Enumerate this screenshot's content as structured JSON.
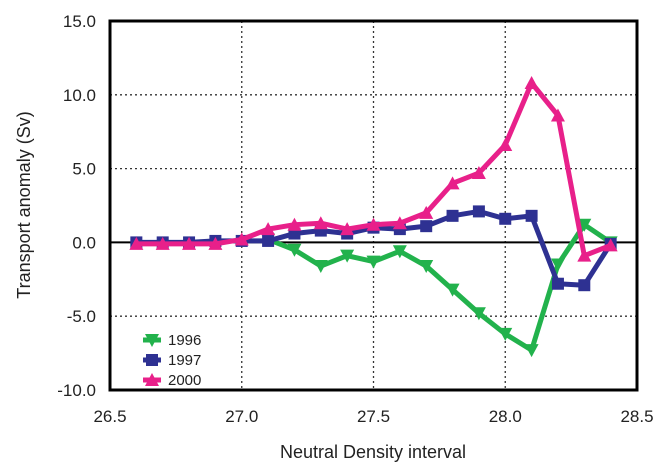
{
  "chart_data": {
    "type": "line",
    "xlabel": "Neutral Density interval",
    "ylabel": "Transport anomaly (Sv)",
    "xlim": [
      26.5,
      28.5
    ],
    "ylim": [
      -10.0,
      15.0
    ],
    "xticks": [
      "26.5",
      "27.0",
      "27.5",
      "28.0",
      "28.5"
    ],
    "yticks": [
      "15.0",
      "10.0",
      "5.0",
      "0.0",
      "-5.0",
      "-10.0"
    ],
    "xtick_values": [
      26.5,
      27.0,
      27.5,
      28.0,
      28.5
    ],
    "ytick_values": [
      15,
      10,
      5,
      0,
      -5,
      -10
    ],
    "grid": true,
    "legend_position": "bottom-left",
    "series": [
      {
        "name": "1996",
        "color": "#22b24c",
        "marker": "triangle-down",
        "x": [
          27.1,
          27.2,
          27.3,
          27.4,
          27.5,
          27.6,
          27.7,
          27.8,
          27.9,
          28.0,
          28.1,
          28.2,
          28.3,
          28.4
        ],
        "y": [
          0.2,
          -0.5,
          -1.6,
          -0.9,
          -1.3,
          -0.6,
          -1.6,
          -3.2,
          -4.8,
          -6.2,
          -7.3,
          -1.5,
          1.2,
          0.0
        ]
      },
      {
        "name": "1997",
        "color": "#2e3192",
        "marker": "square",
        "x": [
          26.6,
          26.7,
          26.8,
          26.9,
          27.0,
          27.1,
          27.2,
          27.3,
          27.4,
          27.5,
          27.6,
          27.7,
          27.8,
          27.9,
          28.0,
          28.1,
          28.2,
          28.3,
          28.4
        ],
        "y": [
          0.0,
          0.0,
          0.0,
          0.1,
          0.1,
          0.1,
          0.6,
          0.8,
          0.6,
          1.0,
          0.9,
          1.1,
          1.8,
          2.1,
          1.6,
          1.8,
          -2.8,
          -2.9,
          -0.1
        ]
      },
      {
        "name": "2000",
        "color": "#e8208a",
        "marker": "triangle-up",
        "x": [
          26.6,
          26.7,
          26.8,
          26.9,
          27.0,
          27.1,
          27.2,
          27.3,
          27.4,
          27.5,
          27.6,
          27.7,
          27.8,
          27.9,
          28.0,
          28.1,
          28.2,
          28.3,
          28.4
        ],
        "y": [
          -0.1,
          -0.1,
          -0.1,
          -0.1,
          0.2,
          0.9,
          1.2,
          1.3,
          0.9,
          1.2,
          1.3,
          2.0,
          4.0,
          4.7,
          6.6,
          10.8,
          8.6,
          -0.9,
          -0.2
        ]
      }
    ]
  }
}
